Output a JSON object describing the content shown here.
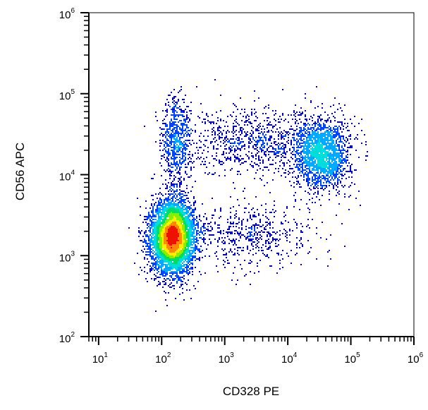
{
  "chart_data": {
    "type": "scatter",
    "style": "flow-cytometry density dot plot (pseudocolor)",
    "xlabel": "CD328 PE",
    "ylabel": "CD56 APC",
    "x_scale": "log",
    "y_scale": "log",
    "xlim": [
      7,
      1000000
    ],
    "ylim": [
      100,
      1000000
    ],
    "x_ticks": [
      {
        "value": 10,
        "base": "10",
        "exp": "1"
      },
      {
        "value": 100,
        "base": "10",
        "exp": "2"
      },
      {
        "value": 1000,
        "base": "10",
        "exp": "3"
      },
      {
        "value": 10000,
        "base": "10",
        "exp": "4"
      },
      {
        "value": 100000,
        "base": "10",
        "exp": "5"
      },
      {
        "value": 1000000,
        "base": "10",
        "exp": "6"
      }
    ],
    "y_ticks": [
      {
        "value": 100,
        "base": "10",
        "exp": "2"
      },
      {
        "value": 1000,
        "base": "10",
        "exp": "3"
      },
      {
        "value": 10000,
        "base": "10",
        "exp": "4"
      },
      {
        "value": 100000,
        "base": "10",
        "exp": "5"
      },
      {
        "value": 1000000,
        "base": "10",
        "exp": "6"
      }
    ],
    "grid": false,
    "legend": "none",
    "density_colors": [
      "#0000cc",
      "#0044ff",
      "#00aaff",
      "#00dddd",
      "#00dd66",
      "#88ee00",
      "#ffee00",
      "#ff8800",
      "#ee1100"
    ],
    "populations": [
      {
        "x_center": 150,
        "y_center": 1700,
        "x_log_spread": 0.17,
        "y_log_spread": 0.22,
        "relative_count": 5500
      },
      {
        "x_center": 35000,
        "y_center": 18000,
        "x_log_spread": 0.22,
        "y_log_spread": 0.22,
        "relative_count": 2000
      },
      {
        "x_center": 170,
        "y_center": 25000,
        "x_log_spread": 0.12,
        "y_log_spread": 0.28,
        "relative_count": 700
      },
      {
        "x_center": 3000,
        "y_center": 25000,
        "x_log_spread": 0.55,
        "y_log_spread": 0.2,
        "relative_count": 900
      },
      {
        "x_center": 2500,
        "y_center": 1800,
        "x_log_spread": 0.5,
        "y_log_spread": 0.2,
        "relative_count": 600
      }
    ]
  }
}
